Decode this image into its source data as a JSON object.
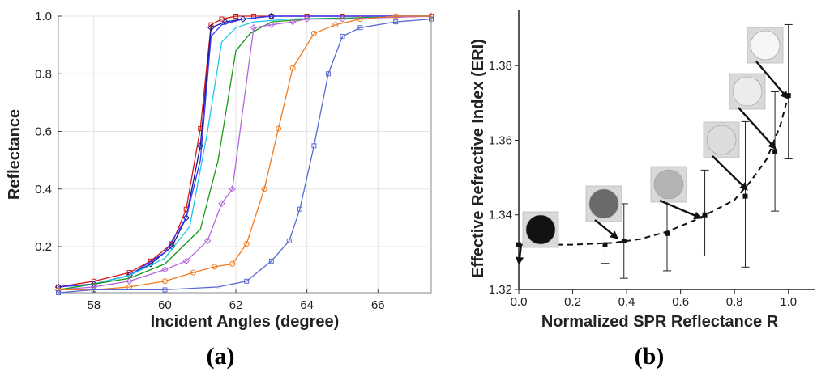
{
  "chart_data": [
    {
      "panel_label": "(a)",
      "type": "line",
      "xlabel": "Incident Angles (degree)",
      "ylabel": "Reflectance",
      "xlim": [
        57,
        67.5
      ],
      "ylim": [
        0.04,
        1.0
      ],
      "x_ticks": [
        "58",
        "60",
        "62",
        "64",
        "66"
      ],
      "y_ticks": [
        "0.2",
        "0.4",
        "0.6",
        "0.8",
        "1.0"
      ],
      "series": [
        {
          "name": "red",
          "color": "#d21a1a",
          "marker": "square",
          "x": [
            57,
            58,
            59,
            59.6,
            60.2,
            60.6,
            61.0,
            61.3,
            61.6,
            62.0,
            62.5,
            63.0,
            64,
            65,
            67.5
          ],
          "y": [
            0.06,
            0.08,
            0.11,
            0.15,
            0.21,
            0.33,
            0.61,
            0.97,
            0.99,
            1.0,
            1.0,
            1.0,
            1.0,
            1.0,
            1.0
          ]
        },
        {
          "name": "dark navy",
          "color": "#1a1a8a",
          "marker": "diamond",
          "x": [
            57,
            58,
            59,
            59.6,
            60.2,
            60.6,
            61.0,
            61.3,
            61.7,
            62.2,
            63,
            67.5
          ],
          "y": [
            0.06,
            0.07,
            0.1,
            0.14,
            0.2,
            0.3,
            0.55,
            0.96,
            0.98,
            0.99,
            1.0,
            1.0
          ]
        },
        {
          "name": "blue",
          "color": "#3333ff",
          "marker": "none",
          "x": [
            57,
            58,
            59,
            60,
            60.6,
            61.0,
            61.3,
            61.6,
            62.2,
            63,
            67.5
          ],
          "y": [
            0.06,
            0.07,
            0.1,
            0.18,
            0.3,
            0.5,
            0.93,
            0.97,
            0.99,
            1.0,
            1.0
          ]
        },
        {
          "name": "cyan",
          "color": "#1cc8e8",
          "marker": "none",
          "x": [
            57,
            58,
            59,
            60,
            60.7,
            61.2,
            61.6,
            62.0,
            62.5,
            63.5,
            67.5
          ],
          "y": [
            0.05,
            0.07,
            0.1,
            0.16,
            0.27,
            0.6,
            0.91,
            0.96,
            0.98,
            0.99,
            1.0
          ]
        },
        {
          "name": "green",
          "color": "#199a19",
          "marker": "none",
          "x": [
            57,
            58,
            59,
            60,
            61.0,
            61.5,
            62.0,
            62.4,
            63,
            64,
            67.5
          ],
          "y": [
            0.05,
            0.07,
            0.09,
            0.14,
            0.26,
            0.5,
            0.88,
            0.94,
            0.98,
            0.99,
            1.0
          ]
        },
        {
          "name": "violet",
          "color": "#b466e0",
          "marker": "diamond",
          "x": [
            57,
            58,
            59,
            60,
            60.6,
            61.2,
            61.6,
            61.9,
            62.5,
            63,
            63.6,
            64,
            65,
            67.5
          ],
          "y": [
            0.05,
            0.06,
            0.08,
            0.12,
            0.15,
            0.22,
            0.35,
            0.4,
            0.96,
            0.97,
            0.98,
            0.99,
            0.99,
            1.0
          ]
        },
        {
          "name": "orange",
          "color": "#f07a20",
          "marker": "circle",
          "x": [
            57,
            58,
            59,
            60,
            60.8,
            61.4,
            61.9,
            62.3,
            62.8,
            63.2,
            63.6,
            64.2,
            64.8,
            65.5,
            66.5,
            67.5
          ],
          "y": [
            0.05,
            0.05,
            0.06,
            0.08,
            0.11,
            0.13,
            0.14,
            0.21,
            0.4,
            0.61,
            0.82,
            0.94,
            0.97,
            0.99,
            1.0,
            1.0
          ]
        },
        {
          "name": "slate blue",
          "color": "#5a6ad0",
          "marker": "square",
          "x": [
            57,
            58,
            60,
            61.5,
            62.3,
            63,
            63.5,
            63.8,
            64.2,
            64.6,
            65,
            65.5,
            66.5,
            67.5
          ],
          "y": [
            0.04,
            0.05,
            0.05,
            0.06,
            0.08,
            0.15,
            0.22,
            0.33,
            0.55,
            0.8,
            0.93,
            0.96,
            0.98,
            0.99
          ]
        }
      ]
    },
    {
      "panel_label": "(b)",
      "type": "scatter",
      "xlabel": "Normalized SPR Reflectance R",
      "ylabel": "Effective Refractive Index (ERI)",
      "xlim": [
        0.0,
        1.1
      ],
      "ylim": [
        1.32,
        1.395
      ],
      "x_ticks": [
        "0.0",
        "0.2",
        "0.4",
        "0.6",
        "0.8",
        "1.0"
      ],
      "y_ticks": [
        "1.32",
        "1.34",
        "1.36",
        "1.38"
      ],
      "points": [
        {
          "x": 0.0,
          "y": 1.332,
          "y_low": 1.332,
          "y_high": 1.332
        },
        {
          "x": 0.32,
          "y": 1.332,
          "y_low": 1.327,
          "y_high": 1.339
        },
        {
          "x": 0.39,
          "y": 1.333,
          "y_low": 1.323,
          "y_high": 1.343
        },
        {
          "x": 0.55,
          "y": 1.335,
          "y_low": 1.325,
          "y_high": 1.346
        },
        {
          "x": 0.69,
          "y": 1.34,
          "y_low": 1.329,
          "y_high": 1.352
        },
        {
          "x": 0.84,
          "y": 1.345,
          "y_low": 1.326,
          "y_high": 1.365
        },
        {
          "x": 0.95,
          "y": 1.357,
          "y_low": 1.341,
          "y_high": 1.373
        },
        {
          "x": 1.0,
          "y": 1.372,
          "y_low": 1.355,
          "y_high": 1.391
        }
      ],
      "fit_line": {
        "style": "dashed",
        "color": "#111111",
        "x": [
          0.0,
          0.2,
          0.35,
          0.45,
          0.55,
          0.65,
          0.72,
          0.8,
          0.86,
          0.92,
          0.97,
          1.0
        ],
        "y": [
          1.332,
          1.332,
          1.3325,
          1.3335,
          1.3355,
          1.3385,
          1.341,
          1.344,
          1.349,
          1.355,
          1.364,
          1.372
        ]
      },
      "insets": [
        {
          "shade": "#121212",
          "target_x": 0.0,
          "target_y": 1.3265
        },
        {
          "shade": "#6a6a6a",
          "target_x": 0.37,
          "target_y": 1.3335
        },
        {
          "shade": "#b4b4b4",
          "target_x": 0.68,
          "target_y": 1.339
        },
        {
          "shade": "#dcdcdc",
          "target_x": 0.85,
          "target_y": 1.3465
        },
        {
          "shade": "#ececec",
          "target_x": 0.955,
          "target_y": 1.3575
        },
        {
          "shade": "#f6f6f6",
          "target_x": 1.0,
          "target_y": 1.371
        }
      ]
    }
  ]
}
